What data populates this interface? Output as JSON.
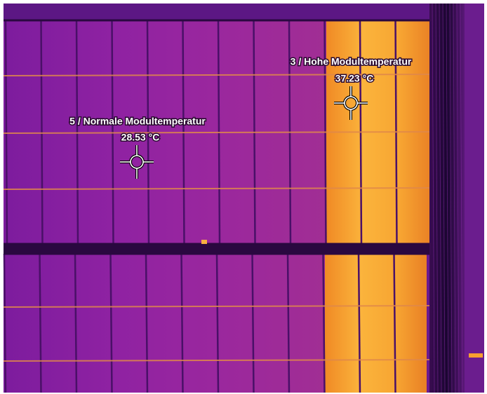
{
  "markers": [
    {
      "label": "5 / Normale Modultemperatur",
      "temperature": "28.53 °C"
    },
    {
      "label": "3 / Hohe Modultemperatur",
      "temperature": "37.23 °C"
    }
  ]
}
